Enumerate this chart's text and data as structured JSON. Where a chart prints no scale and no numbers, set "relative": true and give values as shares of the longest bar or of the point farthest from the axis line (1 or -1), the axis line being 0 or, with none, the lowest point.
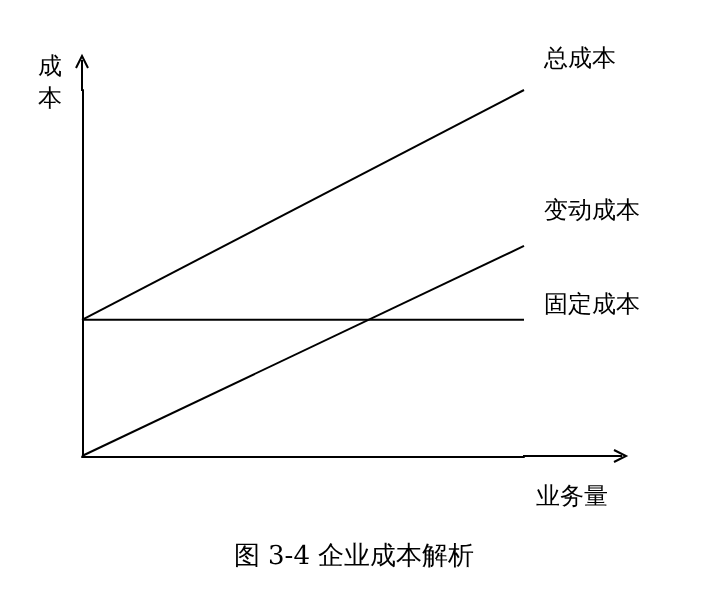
{
  "chart_data": {
    "type": "line",
    "title": "图 3-4 企业成本解析",
    "xlabel": "业务量",
    "ylabel": "成本",
    "relative": true,
    "categories": [
      null,
      null
    ],
    "grid": false,
    "legend": false,
    "series": [
      {
        "name": "总成本",
        "color": "#000000",
        "values": [
          0.372,
          1
        ]
      },
      {
        "name": "变动成本",
        "color": "#000000",
        "values": [
          0,
          0.574
        ]
      },
      {
        "name": "固定成本",
        "color": "#000000",
        "values": [
          0.372,
          0.372
        ]
      }
    ]
  }
}
